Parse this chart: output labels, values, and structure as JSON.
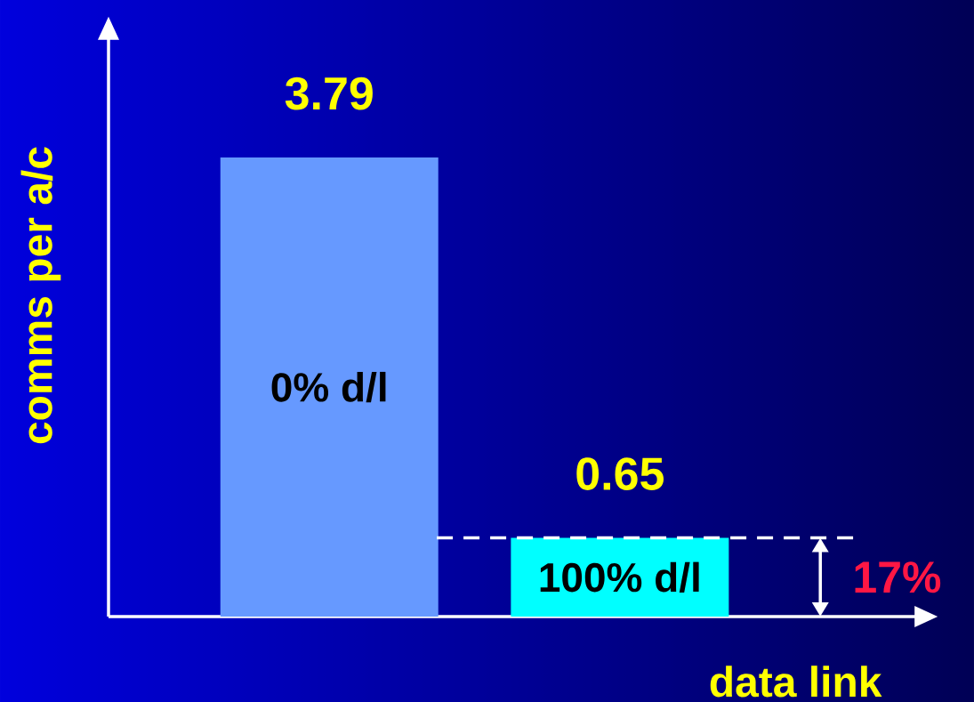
{
  "chart_data": {
    "type": "bar",
    "categories": [
      "0% d/l",
      "100% d/l"
    ],
    "values": [
      3.79,
      0.65
    ],
    "colors": [
      "#6699ff",
      "#00ffff"
    ],
    "data_labels": true,
    "xlabel": "data link",
    "ylabel": "comms per a/c",
    "ref_lines": [
      {
        "axis": "y",
        "value": 0.65,
        "color": "#ffffff",
        "line_style": "dashed"
      }
    ],
    "annotations": [
      "17%"
    ]
  }
}
